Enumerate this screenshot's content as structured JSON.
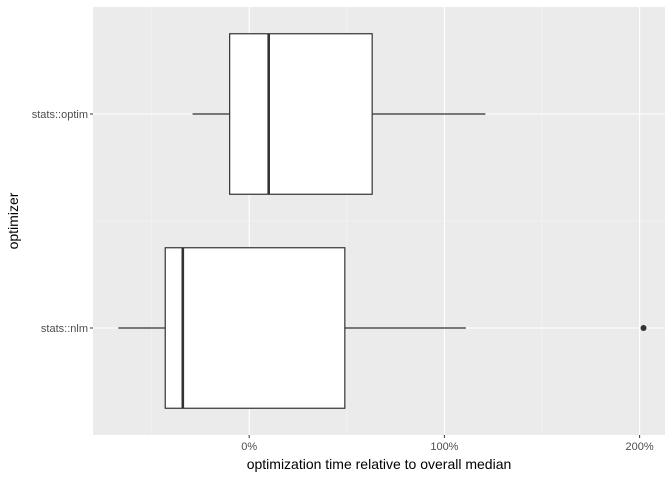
{
  "chart_data": {
    "type": "boxplot",
    "orientation": "horizontal",
    "xlabel": "optimization time relative to overall median",
    "ylabel": "optimizer",
    "xlim": [
      -80,
      213
    ],
    "x_ticks": [
      0,
      100,
      200
    ],
    "x_tick_labels": [
      "0%",
      "100%",
      "200%"
    ],
    "x_minor_ticks": [
      -50,
      50,
      150
    ],
    "categories": [
      "stats::optim",
      "stats::nlm"
    ],
    "boxes": [
      {
        "category": "stats::optim",
        "whisker_low": -29,
        "q1": -10,
        "median": 10,
        "q3": 63,
        "whisker_high": 121,
        "outliers": []
      },
      {
        "category": "stats::nlm",
        "whisker_low": -67,
        "q1": -43,
        "median": -34,
        "q3": 49,
        "whisker_high": 111,
        "outliers": [
          202
        ]
      }
    ],
    "grid": true,
    "colors": {
      "panel": "#ebebeb",
      "grid_major": "#ffffff",
      "grid_minor": "#f5f5f5",
      "box_fill": "#ffffff",
      "box_line": "#333333",
      "outlier": "#333333"
    }
  }
}
